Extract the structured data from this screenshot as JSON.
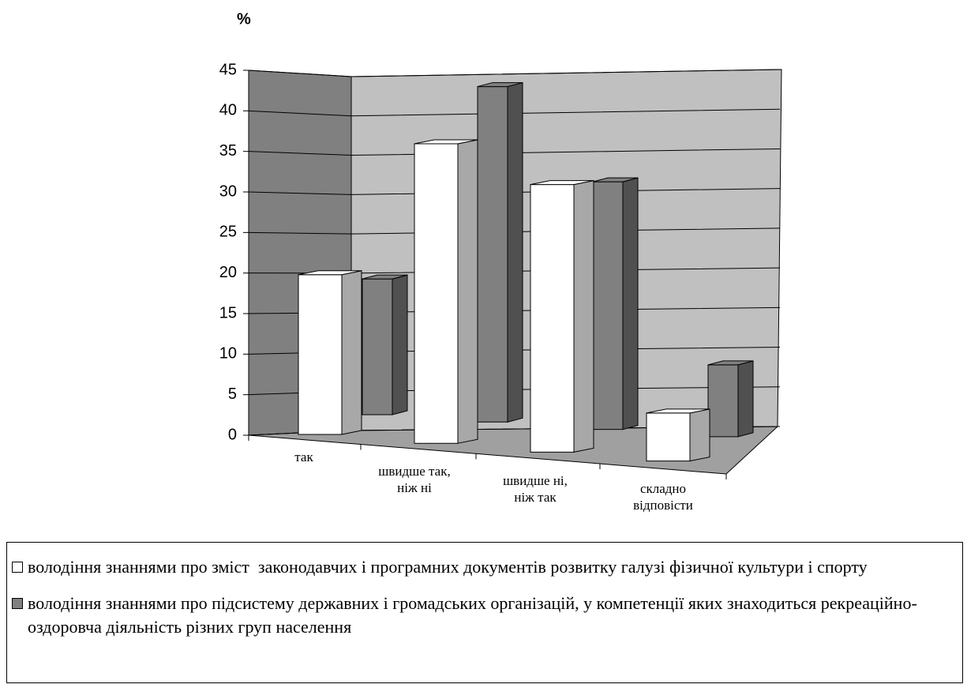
{
  "chart_data": {
    "type": "bar3d",
    "y_label": "%",
    "categories": [
      "так",
      "швидше так, ніж ні",
      "швидше ні, ніж так",
      "складно відповісти"
    ],
    "series": [
      {
        "name": "володіння знаннями про зміст  законодавчих і програмних документів розвитку галузі фізичної культури і спорту",
        "color": "#ffffff",
        "values": [
          20,
          37.5,
          33.5,
          6
        ]
      },
      {
        "name": "володіння знаннями про підсистему державних і громадських організацій, у компетенції яких знаходиться рекреаційно-оздоровча діяльність різних груп населення",
        "color": "#808080",
        "values": [
          17,
          42,
          31,
          9
        ]
      }
    ],
    "ylim": [
      0,
      45
    ],
    "yticks": [
      0,
      5,
      10,
      15,
      20,
      25,
      30,
      35,
      40,
      45
    ],
    "grid": true
  }
}
